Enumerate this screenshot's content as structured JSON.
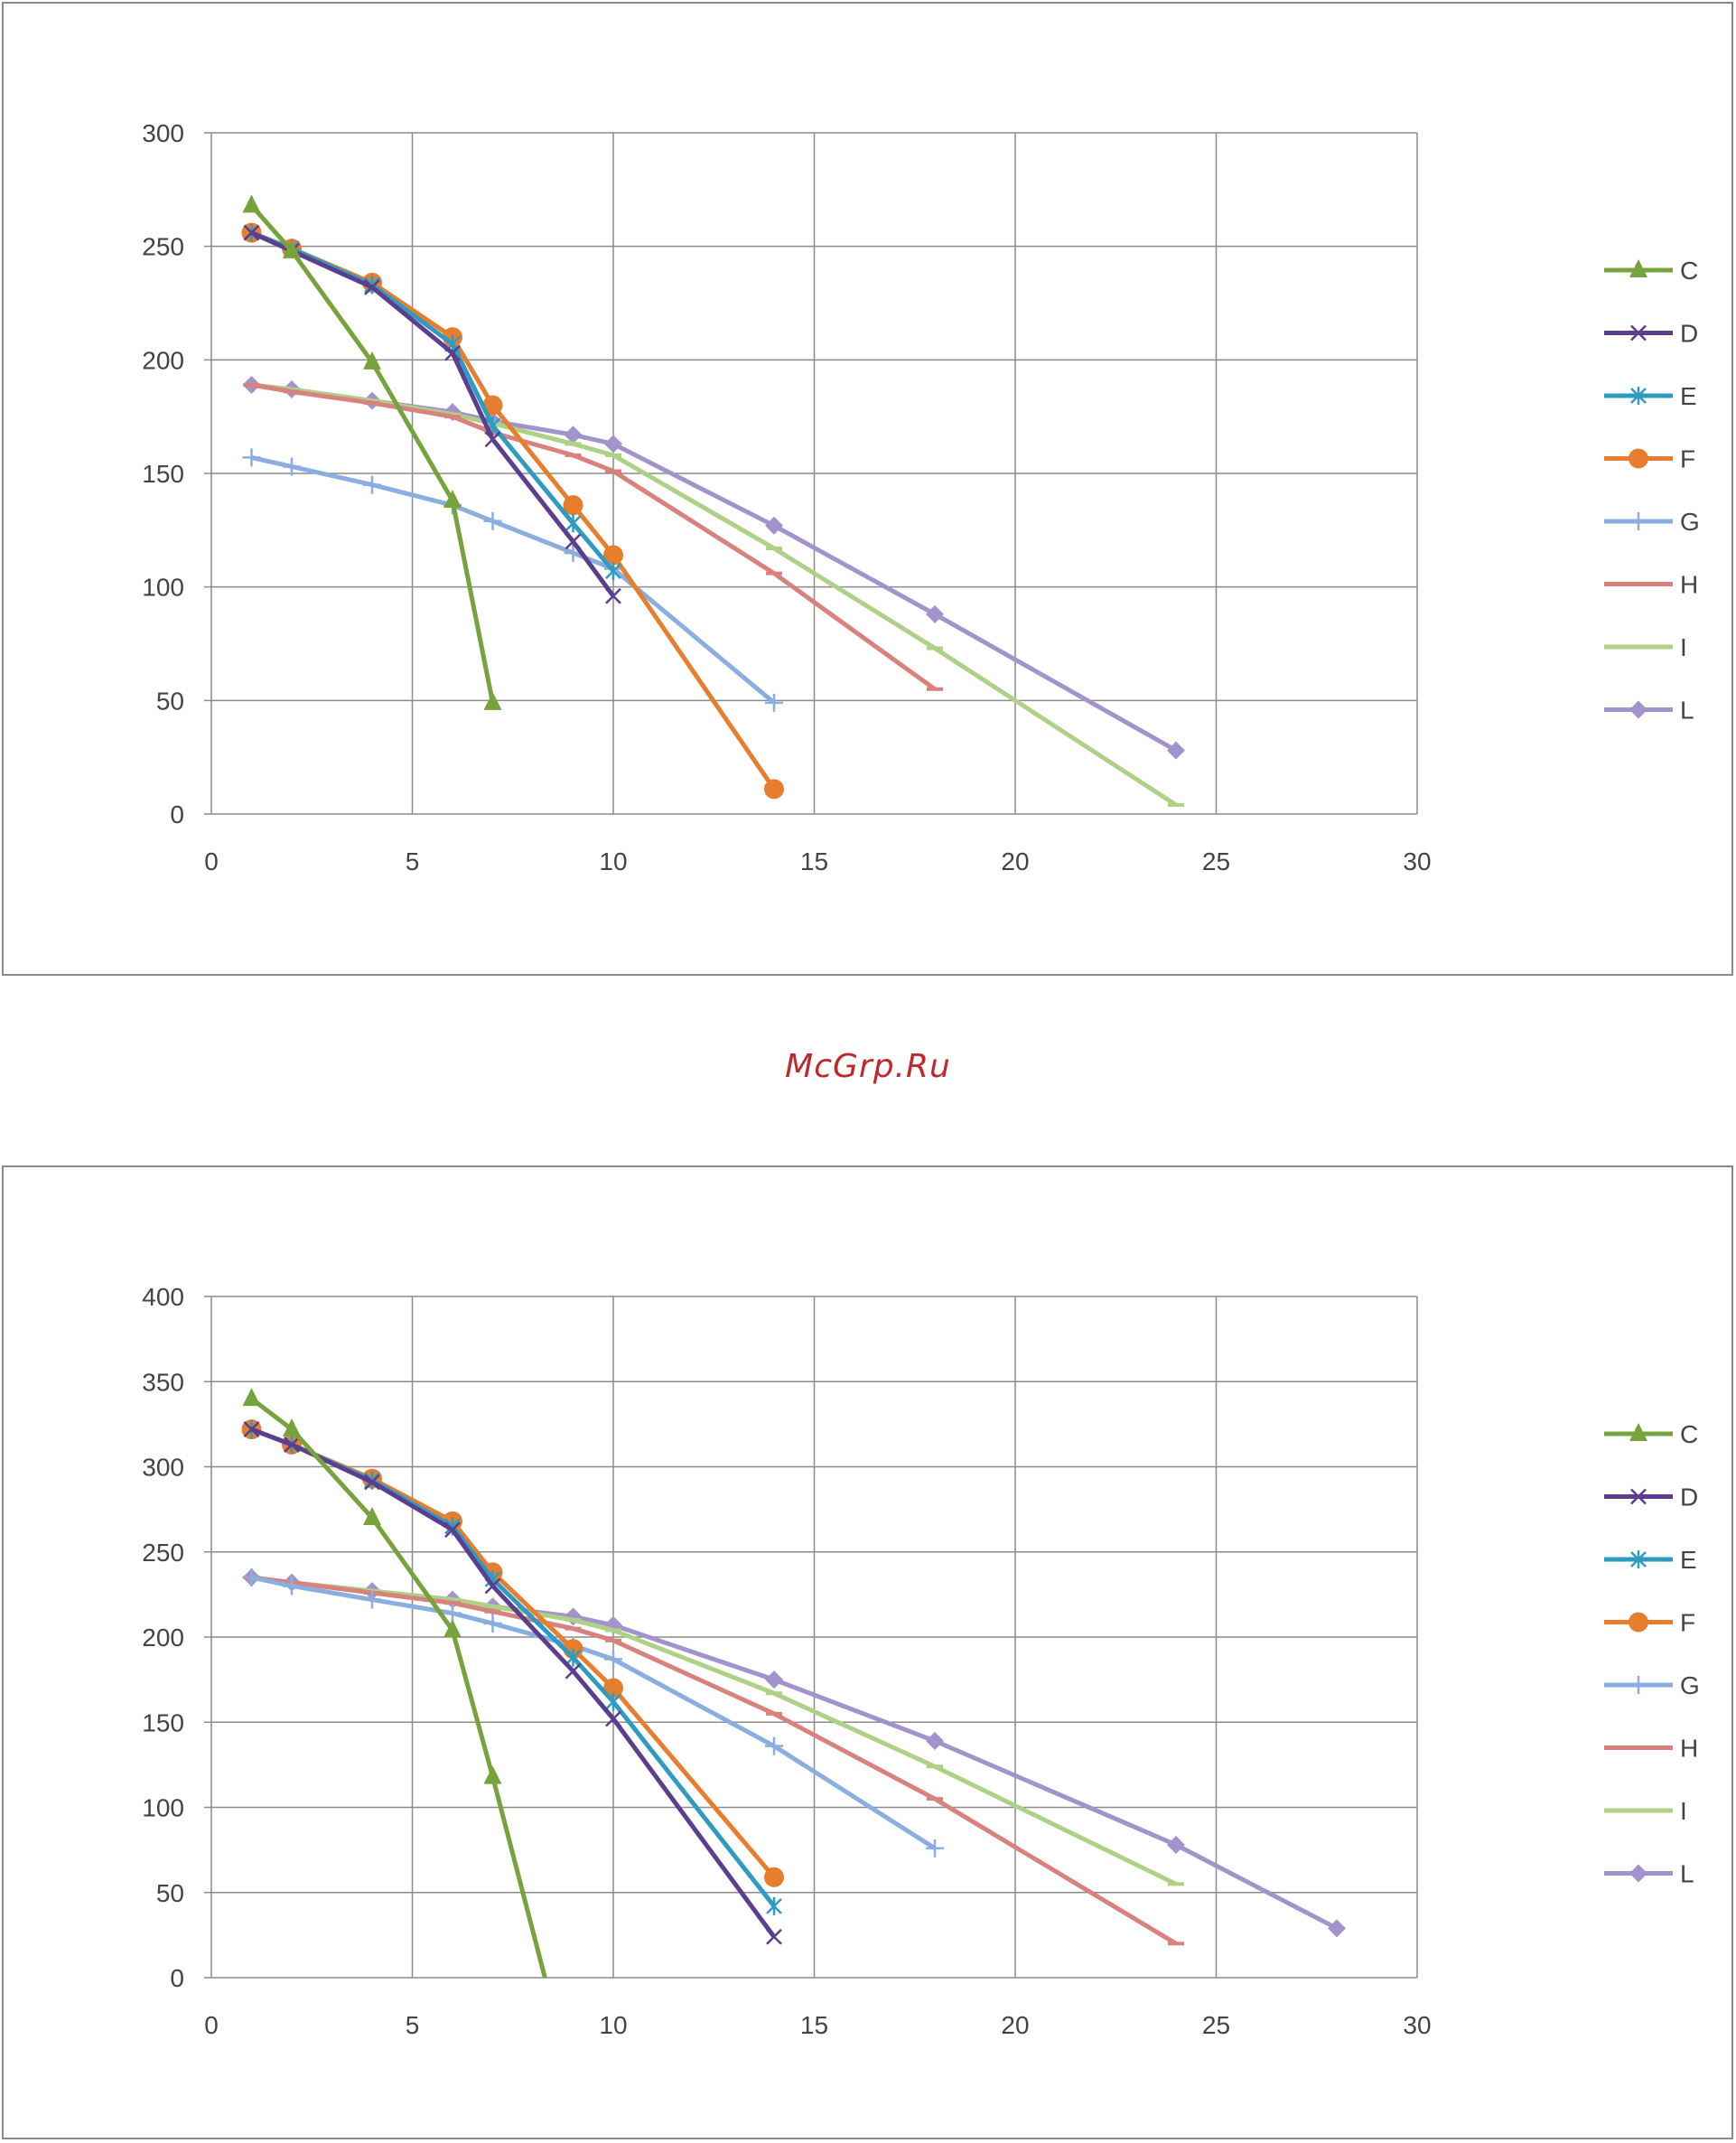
{
  "watermark": "McGrp.Ru",
  "charts": [
    {
      "chart_data": {
        "type": "line",
        "xlim": [
          0,
          30
        ],
        "ylim": [
          0,
          300
        ],
        "x_ticks": [
          0,
          5,
          10,
          15,
          20,
          25,
          30
        ],
        "y_ticks": [
          0,
          50,
          100,
          150,
          200,
          250,
          300
        ],
        "grid": true,
        "legend": "right",
        "series": [
          {
            "name": "C",
            "color": "#77a33c",
            "marker": "triangle",
            "x": [
              1,
              2,
              4,
              6,
              7
            ],
            "y": [
              268,
              248,
              199,
              138,
              49
            ]
          },
          {
            "name": "D",
            "color": "#5b3e8e",
            "marker": "x",
            "x": [
              1,
              2,
              4,
              6,
              7,
              9,
              10
            ],
            "y": [
              256,
              248,
              232,
              203,
              165,
              120,
              96
            ]
          },
          {
            "name": "E",
            "color": "#2f9bc1",
            "marker": "star",
            "x": [
              1,
              2,
              4,
              6,
              7,
              9,
              10
            ],
            "y": [
              256,
              249,
              233,
              207,
              171,
              128,
              107
            ]
          },
          {
            "name": "F",
            "color": "#e67e2e",
            "marker": "circle",
            "x": [
              1,
              2,
              4,
              6,
              7,
              9,
              10,
              14
            ],
            "y": [
              256,
              249,
              234,
              210,
              180,
              136,
              114,
              11
            ]
          },
          {
            "name": "G",
            "color": "#8aaee0",
            "marker": "plus",
            "x": [
              1,
              2,
              4,
              6,
              7,
              9,
              10,
              14
            ],
            "y": [
              157,
              153,
              145,
              136,
              129,
              115,
              108,
              49
            ]
          },
          {
            "name": "H",
            "color": "#d9827d",
            "marker": "dash",
            "x": [
              1,
              2,
              4,
              6,
              7,
              9,
              10,
              14,
              18
            ],
            "y": [
              189,
              186,
              181,
              175,
              168,
              158,
              151,
              106,
              55
            ]
          },
          {
            "name": "I",
            "color": "#aed285",
            "marker": "dash",
            "x": [
              1,
              2,
              4,
              6,
              7,
              9,
              10,
              14,
              18,
              24
            ],
            "y": [
              189,
              187,
              182,
              176,
              172,
              163,
              158,
              117,
              73,
              4
            ]
          },
          {
            "name": "L",
            "color": "#a393cc",
            "marker": "diamond",
            "x": [
              1,
              2,
              4,
              6,
              7,
              9,
              10,
              14,
              18,
              24
            ],
            "y": [
              189,
              187,
              182,
              177,
              173,
              167,
              163,
              127,
              88,
              28
            ]
          }
        ]
      }
    },
    {
      "chart_data": {
        "type": "line",
        "xlim": [
          0,
          30
        ],
        "ylim": [
          0,
          400
        ],
        "x_ticks": [
          0,
          5,
          10,
          15,
          20,
          25,
          30
        ],
        "y_ticks": [
          0,
          50,
          100,
          150,
          200,
          250,
          300,
          350,
          400
        ],
        "grid": true,
        "legend": "right",
        "series": [
          {
            "name": "C",
            "color": "#77a33c",
            "marker": "triangle",
            "x": [
              1,
              2,
              4,
              6,
              7,
              8.3
            ],
            "y": [
              340,
              322,
              270,
              204,
              118,
              0
            ]
          },
          {
            "name": "D",
            "color": "#5b3e8e",
            "marker": "x",
            "x": [
              1,
              2,
              4,
              6,
              7,
              9,
              10,
              14
            ],
            "y": [
              322,
              313,
              291,
              263,
              230,
              180,
              152,
              24
            ]
          },
          {
            "name": "E",
            "color": "#2f9bc1",
            "marker": "star",
            "x": [
              1,
              2,
              4,
              6,
              7,
              9,
              10,
              14
            ],
            "y": [
              322,
              313,
              292,
              265,
              234,
              188,
              162,
              42
            ]
          },
          {
            "name": "F",
            "color": "#e67e2e",
            "marker": "circle",
            "x": [
              1,
              2,
              4,
              6,
              7,
              9,
              10,
              14
            ],
            "y": [
              322,
              313,
              293,
              268,
              238,
              193,
              170,
              59
            ]
          },
          {
            "name": "G",
            "color": "#8aaee0",
            "marker": "plus",
            "x": [
              1,
              2,
              4,
              6,
              7,
              9,
              10,
              14,
              18
            ],
            "y": [
              235,
              230,
              222,
              214,
              208,
              195,
              187,
              136,
              76
            ]
          },
          {
            "name": "H",
            "color": "#d9827d",
            "marker": "dash",
            "x": [
              1,
              2,
              4,
              6,
              7,
              9,
              10,
              14,
              18,
              24
            ],
            "y": [
              235,
              232,
              226,
              220,
              215,
              205,
              198,
              155,
              105,
              20
            ]
          },
          {
            "name": "I",
            "color": "#aed285",
            "marker": "dash",
            "x": [
              1,
              2,
              4,
              6,
              7,
              9,
              10,
              14,
              18,
              24
            ],
            "y": [
              235,
              232,
              227,
              222,
              218,
              210,
              204,
              167,
              124,
              55
            ]
          },
          {
            "name": "L",
            "color": "#a393cc",
            "marker": "diamond",
            "x": [
              1,
              2,
              4,
              6,
              7,
              9,
              10,
              14,
              18,
              24,
              28
            ],
            "y": [
              235,
              232,
              227,
              222,
              218,
              212,
              207,
              175,
              139,
              78,
              29
            ]
          }
        ]
      }
    }
  ]
}
